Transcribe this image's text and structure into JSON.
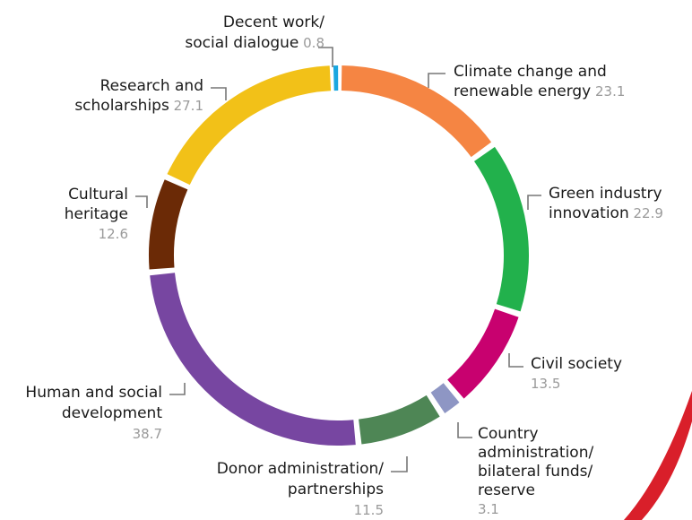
{
  "chart_data": {
    "type": "pie",
    "variant": "donut",
    "title": "",
    "legend": "none",
    "start_angle_deg": 0,
    "direction": "clockwise",
    "slices": [
      {
        "label_lines": [
          "Climate change and",
          "renewable energy"
        ],
        "value": 23.1,
        "value_text": "23.1",
        "color": "#F58543"
      },
      {
        "label_lines": [
          "Green industry",
          "innovation"
        ],
        "value": 22.9,
        "value_text": "22.9",
        "color": "#22B14C"
      },
      {
        "label_lines": [
          "Civil society"
        ],
        "value": 13.5,
        "value_text": "13.5",
        "color": "#C8016F"
      },
      {
        "label_lines": [
          "Country",
          "administration/",
          "bilateral funds/",
          "reserve"
        ],
        "value": 3.1,
        "value_text": "3.1",
        "color": "#8E96C4"
      },
      {
        "label_lines": [
          "Donor administration/",
          "partnerships"
        ],
        "value": 11.5,
        "value_text": "11.5",
        "color": "#4E8655"
      },
      {
        "label_lines": [
          "Human and social",
          "development"
        ],
        "value": 38.7,
        "value_text": "38.7",
        "color": "#7746A1"
      },
      {
        "label_lines": [
          "Cultural",
          "heritage"
        ],
        "value": 12.6,
        "value_text": "12.6",
        "color": "#6B2A06"
      },
      {
        "label_lines": [
          "Research and",
          "scholarships"
        ],
        "value": 27.1,
        "value_text": "27.1",
        "color": "#F2C118"
      },
      {
        "label_lines": [
          "Decent work/",
          "social dialogue"
        ],
        "value": 0.8,
        "value_text": "0.8",
        "color": "#1AA7E0"
      }
    ]
  },
  "decoration": {
    "corner_swoosh_color": "#D91F2A"
  }
}
